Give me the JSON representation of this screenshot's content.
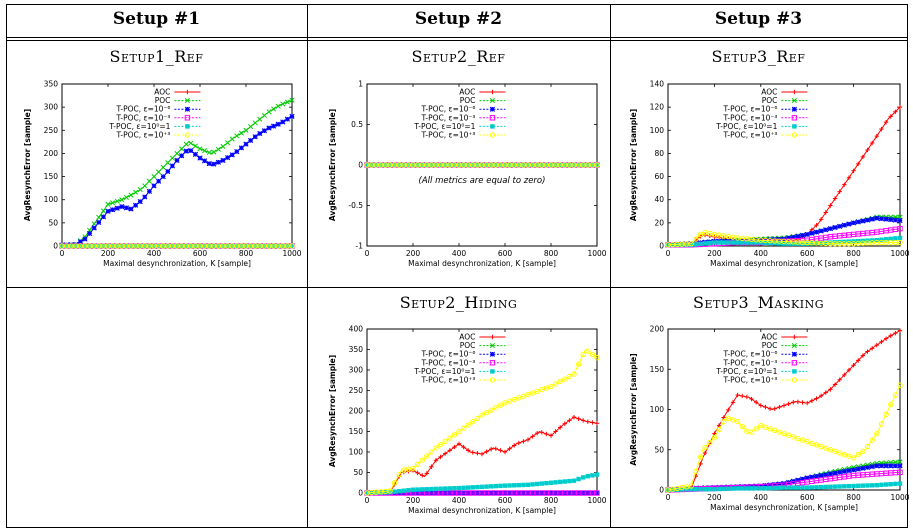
{
  "headers": [
    "Setup #1",
    "Setup #2",
    "Setup #3"
  ],
  "panel_titles": {
    "s1ref": "Setup1_Ref",
    "s2ref": "Setup2_Ref",
    "s3ref": "Setup3_Ref",
    "s2hid": "Setup2_Hiding",
    "s3mask": "Setup3_Masking"
  },
  "common": {
    "xlabel": "Maximal desynchronization, K [sample]",
    "ylabel": "AvgResynchError [sample]",
    "legend": [
      "AOC",
      "POC",
      "T-POC, ε=10⁻⁶",
      "T-POC, ε=10⁻³",
      "T-POC, ε=10⁰=1",
      "T-POC, ε=10⁺³"
    ],
    "colors": [
      "#ff0000",
      "#00cc00",
      "#0000ff",
      "#ff00ff",
      "#00cccc",
      "#ffff00"
    ]
  },
  "chart_data": [
    {
      "id": "s1ref",
      "type": "line",
      "title": "Setup1_Ref",
      "xlim": [
        0,
        1000
      ],
      "ylim": [
        0,
        350
      ],
      "xticks": [
        0,
        200,
        400,
        600,
        800,
        1000
      ],
      "yticks": [
        0,
        50,
        100,
        150,
        200,
        250,
        300,
        350
      ],
      "legend_position": "top-right",
      "series": [
        {
          "name": "AOC",
          "x": [
            0,
            1000
          ],
          "y": [
            0,
            0
          ]
        },
        {
          "name": "POC",
          "x": [
            0,
            60,
            100,
            150,
            200,
            260,
            300,
            350,
            400,
            450,
            500,
            550,
            600,
            650,
            700,
            750,
            800,
            850,
            900,
            950,
            1000
          ],
          "y": [
            2,
            3,
            20,
            55,
            90,
            100,
            110,
            125,
            150,
            175,
            200,
            225,
            210,
            200,
            215,
            235,
            250,
            270,
            290,
            305,
            315
          ]
        },
        {
          "name": "T-POC, ε=10⁻⁶",
          "x": [
            0,
            60,
            100,
            150,
            200,
            260,
            300,
            350,
            400,
            450,
            500,
            550,
            600,
            650,
            700,
            750,
            800,
            850,
            900,
            950,
            1000
          ],
          "y": [
            2,
            3,
            15,
            45,
            75,
            85,
            80,
            100,
            130,
            155,
            185,
            210,
            190,
            175,
            185,
            200,
            220,
            240,
            255,
            265,
            280
          ]
        },
        {
          "name": "T-POC, ε=10⁻³",
          "x": [
            0,
            1000
          ],
          "y": [
            0,
            0
          ]
        },
        {
          "name": "T-POC, ε=10⁰=1",
          "x": [
            0,
            1000
          ],
          "y": [
            0,
            0
          ]
        },
        {
          "name": "T-POC, ε=10⁺³",
          "x": [
            0,
            1000
          ],
          "y": [
            0,
            0
          ]
        }
      ]
    },
    {
      "id": "s2ref",
      "type": "line",
      "title": "Setup2_Ref",
      "xlim": [
        0,
        1000
      ],
      "ylim": [
        -1,
        1
      ],
      "xticks": [
        0,
        200,
        400,
        600,
        800,
        1000
      ],
      "yticks": [
        -1,
        -0.5,
        0,
        0.5,
        1
      ],
      "legend_position": "top-left",
      "annotation": "(All metrics are equal to zero)",
      "series": [
        {
          "name": "AOC",
          "x": [
            0,
            1000
          ],
          "y": [
            0,
            0
          ]
        },
        {
          "name": "POC",
          "x": [
            0,
            1000
          ],
          "y": [
            0,
            0
          ]
        },
        {
          "name": "T-POC, ε=10⁻⁶",
          "x": [
            0,
            1000
          ],
          "y": [
            0,
            0
          ]
        },
        {
          "name": "T-POC, ε=10⁻³",
          "x": [
            0,
            1000
          ],
          "y": [
            0,
            0
          ]
        },
        {
          "name": "T-POC, ε=10⁰=1",
          "x": [
            0,
            1000
          ],
          "y": [
            0,
            0
          ]
        },
        {
          "name": "T-POC, ε=10⁺³",
          "x": [
            0,
            1000
          ],
          "y": [
            0,
            0
          ]
        }
      ]
    },
    {
      "id": "s3ref",
      "type": "line",
      "title": "Setup3_Ref",
      "xlim": [
        0,
        1000
      ],
      "ylim": [
        0,
        140
      ],
      "xticks": [
        0,
        200,
        400,
        600,
        800,
        1000
      ],
      "yticks": [
        0,
        20,
        40,
        60,
        80,
        100,
        120,
        140
      ],
      "legend_position": "top-right",
      "series": [
        {
          "name": "AOC",
          "x": [
            0,
            100,
            150,
            200,
            300,
            400,
            500,
            550,
            600,
            650,
            700,
            750,
            800,
            850,
            900,
            950,
            1000
          ],
          "y": [
            1,
            2,
            10,
            8,
            5,
            4,
            3,
            5,
            10,
            20,
            35,
            50,
            65,
            80,
            95,
            110,
            120
          ]
        },
        {
          "name": "POC",
          "x": [
            0,
            100,
            200,
            300,
            400,
            500,
            600,
            700,
            800,
            900,
            1000
          ],
          "y": [
            1,
            2,
            4,
            5,
            6,
            7,
            10,
            15,
            20,
            25,
            25
          ]
        },
        {
          "name": "T-POC, ε=10⁻⁶",
          "x": [
            0,
            100,
            200,
            300,
            400,
            500,
            600,
            700,
            800,
            900,
            1000
          ],
          "y": [
            1,
            2,
            4,
            4,
            5,
            6,
            10,
            15,
            20,
            24,
            22
          ]
        },
        {
          "name": "T-POC, ε=10⁻³",
          "x": [
            0,
            100,
            200,
            300,
            400,
            500,
            600,
            700,
            800,
            900,
            1000
          ],
          "y": [
            1,
            1,
            2,
            3,
            3,
            4,
            5,
            8,
            10,
            12,
            15
          ]
        },
        {
          "name": "T-POC, ε=10⁰=1",
          "x": [
            0,
            100,
            200,
            300,
            400,
            500,
            600,
            700,
            800,
            900,
            1000
          ],
          "y": [
            1,
            1,
            3,
            3,
            3,
            2,
            2,
            3,
            4,
            5,
            7
          ]
        },
        {
          "name": "T-POC, ε=10⁺³",
          "x": [
            0,
            100,
            150,
            200,
            300,
            400,
            500,
            600,
            700,
            800,
            900,
            1000
          ],
          "y": [
            1,
            2,
            12,
            10,
            7,
            5,
            4,
            3,
            2,
            2,
            3,
            3
          ]
        }
      ]
    },
    {
      "id": "s2hid",
      "type": "line",
      "title": "Setup2_Hiding",
      "xlim": [
        0,
        1000
      ],
      "ylim": [
        0,
        400
      ],
      "xticks": [
        0,
        200,
        400,
        600,
        800,
        1000
      ],
      "yticks": [
        0,
        50,
        100,
        150,
        200,
        250,
        300,
        350,
        400
      ],
      "legend_position": "top-right",
      "series": [
        {
          "name": "AOC",
          "x": [
            0,
            100,
            150,
            200,
            250,
            300,
            350,
            400,
            450,
            500,
            550,
            600,
            650,
            700,
            750,
            800,
            850,
            900,
            950,
            1000
          ],
          "y": [
            0,
            2,
            50,
            55,
            40,
            80,
            100,
            120,
            100,
            95,
            110,
            100,
            120,
            130,
            150,
            140,
            165,
            185,
            175,
            170
          ]
        },
        {
          "name": "POC",
          "x": [
            0,
            1000
          ],
          "y": [
            0,
            0
          ]
        },
        {
          "name": "T-POC, ε=10⁻⁶",
          "x": [
            0,
            1000
          ],
          "y": [
            0,
            0
          ]
        },
        {
          "name": "T-POC, ε=10⁻³",
          "x": [
            0,
            1000
          ],
          "y": [
            0,
            0
          ]
        },
        {
          "name": "T-POC, ε=10⁰=1",
          "x": [
            0,
            100,
            200,
            300,
            400,
            500,
            600,
            700,
            800,
            900,
            950,
            1000
          ],
          "y": [
            0,
            2,
            8,
            10,
            12,
            15,
            18,
            20,
            25,
            30,
            40,
            45
          ]
        },
        {
          "name": "T-POC, ε=10⁺³",
          "x": [
            0,
            100,
            150,
            200,
            300,
            400,
            500,
            600,
            700,
            800,
            900,
            950,
            1000
          ],
          "y": [
            0,
            5,
            55,
            60,
            110,
            150,
            190,
            220,
            240,
            260,
            290,
            350,
            330
          ]
        }
      ]
    },
    {
      "id": "s3mask",
      "type": "line",
      "title": "Setup3_Masking",
      "xlim": [
        0,
        1000
      ],
      "ylim": [
        0,
        200
      ],
      "xticks": [
        0,
        200,
        400,
        600,
        800,
        1000
      ],
      "yticks": [
        0,
        50,
        100,
        150,
        200
      ],
      "legend_position": "top-right",
      "series": [
        {
          "name": "AOC",
          "x": [
            0,
            100,
            150,
            200,
            250,
            300,
            350,
            400,
            450,
            500,
            550,
            600,
            650,
            700,
            750,
            800,
            850,
            900,
            950,
            1000
          ],
          "y": [
            0,
            2,
            40,
            70,
            95,
            118,
            115,
            105,
            100,
            105,
            110,
            108,
            115,
            125,
            140,
            155,
            170,
            180,
            190,
            198
          ]
        },
        {
          "name": "POC",
          "x": [
            0,
            100,
            200,
            300,
            400,
            500,
            600,
            700,
            800,
            900,
            1000
          ],
          "y": [
            0,
            2,
            3,
            4,
            5,
            8,
            15,
            22,
            28,
            33,
            35
          ]
        },
        {
          "name": "T-POC, ε=10⁻⁶",
          "x": [
            0,
            100,
            200,
            300,
            400,
            500,
            600,
            700,
            800,
            900,
            1000
          ],
          "y": [
            0,
            2,
            3,
            4,
            5,
            8,
            15,
            20,
            25,
            30,
            30
          ]
        },
        {
          "name": "T-POC, ε=10⁻³",
          "x": [
            0,
            100,
            200,
            300,
            400,
            500,
            600,
            700,
            800,
            900,
            1000
          ],
          "y": [
            0,
            1,
            2,
            3,
            4,
            6,
            10,
            14,
            18,
            20,
            22
          ]
        },
        {
          "name": "T-POC, ε=10⁰=1",
          "x": [
            0,
            100,
            200,
            300,
            400,
            500,
            600,
            700,
            800,
            900,
            1000
          ],
          "y": [
            0,
            1,
            1,
            2,
            2,
            3,
            3,
            4,
            5,
            6,
            8
          ]
        },
        {
          "name": "T-POC, ε=10⁺³",
          "x": [
            0,
            100,
            150,
            200,
            250,
            300,
            350,
            400,
            450,
            500,
            550,
            600,
            650,
            700,
            750,
            800,
            850,
            900,
            950,
            1000
          ],
          "y": [
            0,
            5,
            50,
            65,
            90,
            85,
            70,
            80,
            75,
            70,
            65,
            60,
            55,
            50,
            45,
            40,
            50,
            70,
            100,
            130
          ]
        }
      ]
    }
  ]
}
